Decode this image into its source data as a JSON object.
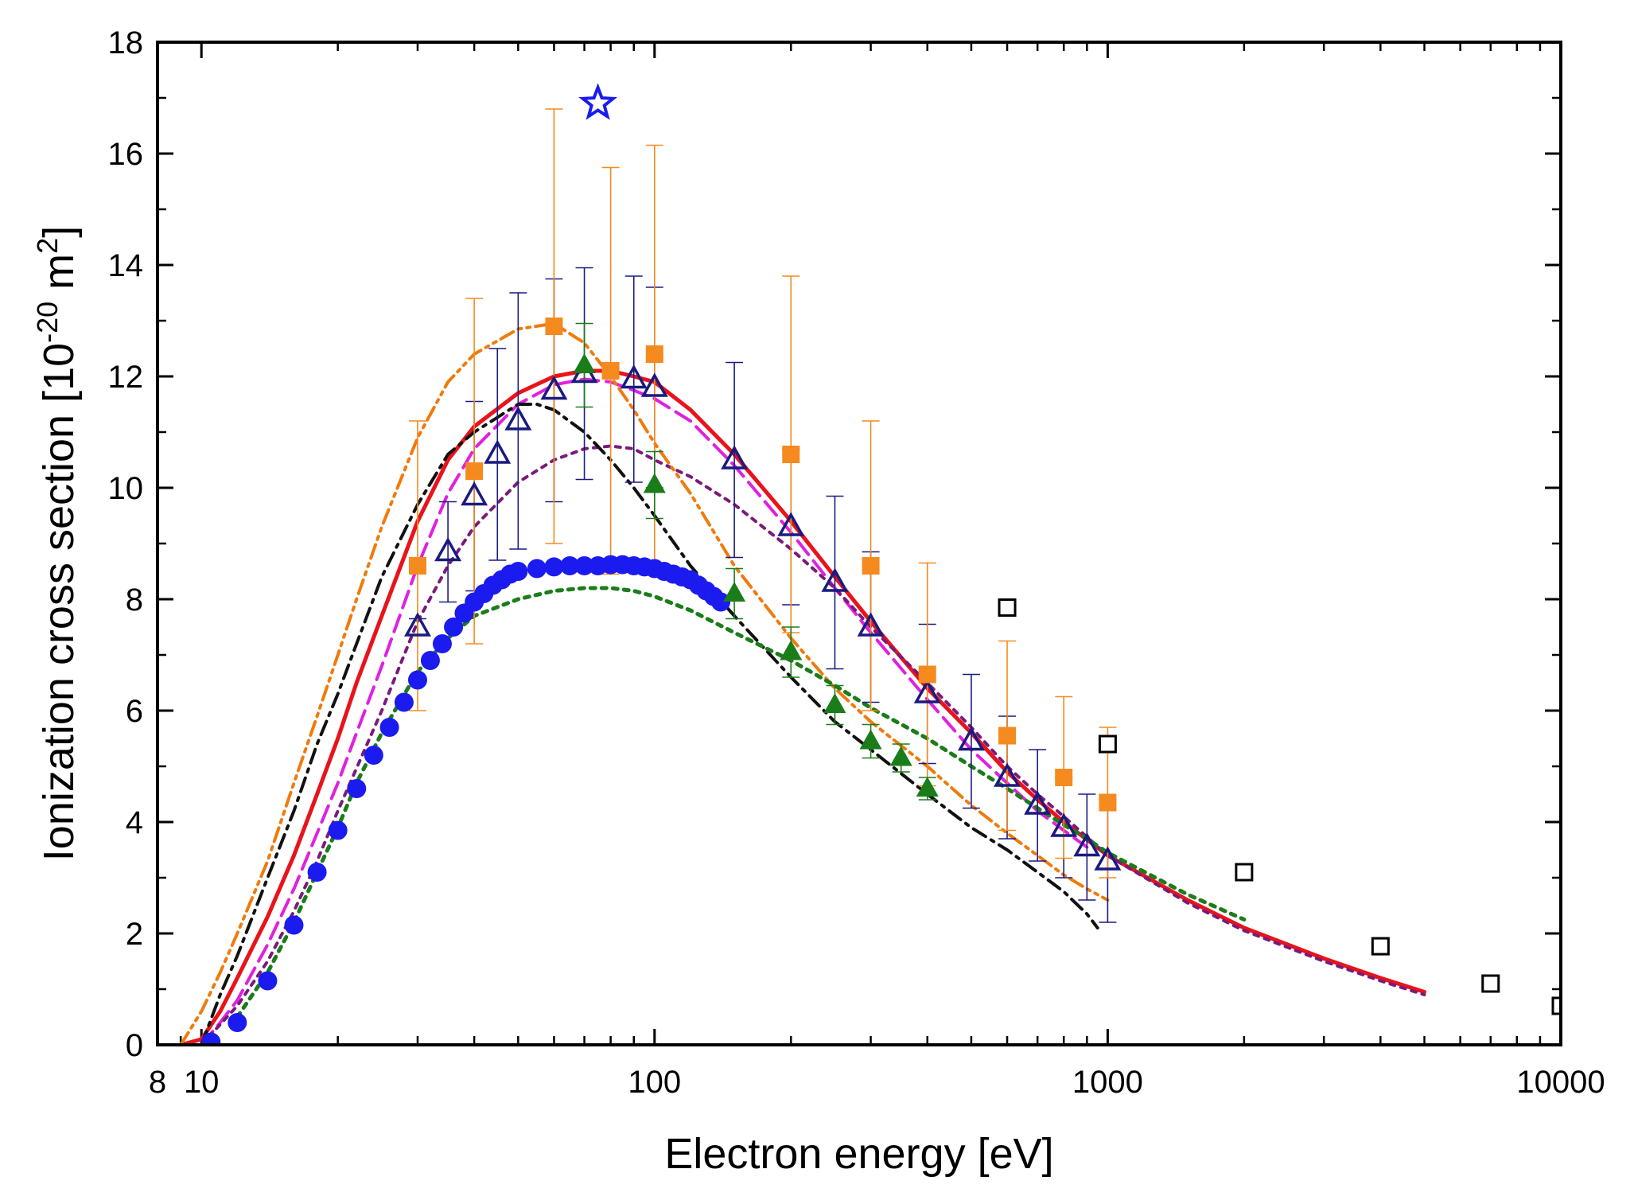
{
  "chart_data": {
    "type": "scatter",
    "title": "",
    "xlabel": "Electron energy [eV]",
    "ylabel": {
      "prefix": "Ionization cross section [10",
      "exp1": "-20",
      "mid": " m",
      "exp2": "2",
      "suffix": "]"
    },
    "x_scale": "log",
    "xlim": [
      8,
      10000
    ],
    "ylim": [
      0,
      18
    ],
    "grid": false,
    "legend": "none",
    "x_ticks": [
      {
        "value": 8,
        "label": "8"
      },
      {
        "value": 10,
        "label": "10"
      },
      {
        "value": 100,
        "label": "100"
      },
      {
        "value": 1000,
        "label": "1000"
      },
      {
        "value": 10000,
        "label": "10000"
      }
    ],
    "y_ticks": [
      {
        "value": 0,
        "label": "0"
      },
      {
        "value": 2,
        "label": "2"
      },
      {
        "value": 4,
        "label": "4"
      },
      {
        "value": 6,
        "label": "6"
      },
      {
        "value": 8,
        "label": "8"
      },
      {
        "value": 10,
        "label": "10"
      },
      {
        "value": 12,
        "label": "12"
      },
      {
        "value": 14,
        "label": "14"
      },
      {
        "value": 16,
        "label": "16"
      },
      {
        "value": 18,
        "label": "18"
      }
    ],
    "lines": [
      {
        "color": "#e8131b",
        "style": "solid",
        "width": 5,
        "points": [
          [
            9,
            0
          ],
          [
            10,
            0.1
          ],
          [
            11,
            0.6
          ],
          [
            12,
            1.2
          ],
          [
            14,
            2.3
          ],
          [
            16,
            3.4
          ],
          [
            18,
            4.5
          ],
          [
            20,
            5.5
          ],
          [
            22,
            6.5
          ],
          [
            25,
            7.7
          ],
          [
            30,
            9.4
          ],
          [
            35,
            10.5
          ],
          [
            40,
            11.1
          ],
          [
            50,
            11.7
          ],
          [
            60,
            12.0
          ],
          [
            70,
            12.1
          ],
          [
            80,
            12.1
          ],
          [
            90,
            12.0
          ],
          [
            100,
            11.9
          ],
          [
            120,
            11.4
          ],
          [
            150,
            10.6
          ],
          [
            200,
            9.4
          ],
          [
            250,
            8.4
          ],
          [
            300,
            7.6
          ],
          [
            400,
            6.4
          ],
          [
            500,
            5.6
          ],
          [
            600,
            4.9
          ],
          [
            700,
            4.4
          ],
          [
            800,
            4.0
          ],
          [
            1000,
            3.4
          ],
          [
            1500,
            2.6
          ],
          [
            2000,
            2.1
          ],
          [
            3000,
            1.55
          ],
          [
            4000,
            1.2
          ],
          [
            5000,
            0.95
          ]
        ]
      },
      {
        "color": "#e020e0",
        "style": "dashed",
        "width": 4,
        "points": [
          [
            10,
            0.0
          ],
          [
            11,
            0.4
          ],
          [
            12,
            0.8
          ],
          [
            14,
            1.8
          ],
          [
            16,
            2.8
          ],
          [
            18,
            3.8
          ],
          [
            20,
            4.7
          ],
          [
            22,
            5.6
          ],
          [
            25,
            6.8
          ],
          [
            30,
            8.6
          ],
          [
            35,
            9.9
          ],
          [
            40,
            10.7
          ],
          [
            50,
            11.5
          ],
          [
            60,
            11.85
          ],
          [
            70,
            11.95
          ],
          [
            80,
            11.9
          ],
          [
            90,
            11.75
          ],
          [
            100,
            11.6
          ],
          [
            120,
            11.2
          ],
          [
            150,
            10.4
          ],
          [
            200,
            9.2
          ],
          [
            250,
            8.2
          ],
          [
            300,
            7.4
          ],
          [
            400,
            6.2
          ],
          [
            500,
            5.3
          ],
          [
            600,
            4.7
          ],
          [
            700,
            4.2
          ],
          [
            800,
            3.85
          ],
          [
            900,
            3.55
          ]
        ]
      },
      {
        "color": "#7a1a7a",
        "style": "dotted",
        "width": 4,
        "points": [
          [
            10,
            0.0
          ],
          [
            12,
            0.7
          ],
          [
            14,
            1.5
          ],
          [
            16,
            2.4
          ],
          [
            18,
            3.3
          ],
          [
            20,
            4.2
          ],
          [
            25,
            6.0
          ],
          [
            30,
            7.6
          ],
          [
            35,
            8.6
          ],
          [
            40,
            9.3
          ],
          [
            50,
            10.1
          ],
          [
            60,
            10.5
          ],
          [
            70,
            10.7
          ],
          [
            80,
            10.75
          ],
          [
            90,
            10.7
          ],
          [
            100,
            10.5
          ],
          [
            120,
            10.2
          ],
          [
            150,
            9.7
          ],
          [
            200,
            8.9
          ],
          [
            250,
            8.2
          ],
          [
            300,
            7.5
          ],
          [
            400,
            6.5
          ],
          [
            500,
            5.7
          ],
          [
            600,
            5.0
          ],
          [
            700,
            4.5
          ],
          [
            800,
            4.1
          ],
          [
            1000,
            3.4
          ],
          [
            1500,
            2.55
          ],
          [
            2000,
            2.05
          ],
          [
            3000,
            1.5
          ],
          [
            4000,
            1.15
          ],
          [
            5000,
            0.9
          ]
        ]
      },
      {
        "color": "#f07b0c",
        "style": "dashdotdot",
        "width": 4,
        "points": [
          [
            9,
            0
          ],
          [
            10,
            0.6
          ],
          [
            11,
            1.3
          ],
          [
            12,
            2.0
          ],
          [
            14,
            3.3
          ],
          [
            16,
            4.7
          ],
          [
            18,
            5.9
          ],
          [
            20,
            7.0
          ],
          [
            22,
            8.0
          ],
          [
            25,
            9.3
          ],
          [
            30,
            10.9
          ],
          [
            35,
            11.9
          ],
          [
            40,
            12.4
          ],
          [
            50,
            12.85
          ],
          [
            60,
            12.95
          ],
          [
            70,
            12.6
          ],
          [
            80,
            12.0
          ],
          [
            90,
            11.4
          ],
          [
            100,
            10.8
          ],
          [
            120,
            9.9
          ],
          [
            150,
            8.6
          ],
          [
            200,
            7.3
          ],
          [
            250,
            6.4
          ],
          [
            300,
            5.8
          ],
          [
            400,
            5.0
          ],
          [
            500,
            4.3
          ],
          [
            600,
            3.8
          ],
          [
            700,
            3.4
          ],
          [
            800,
            3.05
          ],
          [
            900,
            2.8
          ],
          [
            1000,
            2.6
          ]
        ]
      },
      {
        "color": "#111111",
        "style": "dashdot",
        "width": 4,
        "points": [
          [
            10,
            0.0
          ],
          [
            11,
            0.9
          ],
          [
            12,
            1.6
          ],
          [
            14,
            3.0
          ],
          [
            16,
            4.2
          ],
          [
            18,
            5.4
          ],
          [
            20,
            6.3
          ],
          [
            22,
            7.2
          ],
          [
            25,
            8.4
          ],
          [
            30,
            9.7
          ],
          [
            35,
            10.6
          ],
          [
            40,
            11.0
          ],
          [
            50,
            11.5
          ],
          [
            55,
            11.5
          ],
          [
            60,
            11.4
          ],
          [
            70,
            11.0
          ],
          [
            80,
            10.5
          ],
          [
            90,
            10.0
          ],
          [
            100,
            9.5
          ],
          [
            120,
            8.6
          ],
          [
            150,
            7.7
          ],
          [
            200,
            6.6
          ],
          [
            250,
            5.8
          ],
          [
            300,
            5.3
          ],
          [
            400,
            4.5
          ],
          [
            500,
            3.9
          ],
          [
            600,
            3.5
          ],
          [
            700,
            3.1
          ],
          [
            800,
            2.75
          ],
          [
            900,
            2.35
          ],
          [
            950,
            2.1
          ]
        ]
      },
      {
        "color": "#1a7d1a",
        "style": "dotted",
        "width": 5,
        "points": [
          [
            12,
            0.5
          ],
          [
            14,
            1.3
          ],
          [
            16,
            2.2
          ],
          [
            18,
            3.1
          ],
          [
            20,
            3.9
          ],
          [
            22,
            4.7
          ],
          [
            25,
            5.6
          ],
          [
            30,
            6.7
          ],
          [
            35,
            7.3
          ],
          [
            40,
            7.7
          ],
          [
            50,
            8.0
          ],
          [
            60,
            8.15
          ],
          [
            70,
            8.2
          ],
          [
            80,
            8.2
          ],
          [
            90,
            8.15
          ],
          [
            100,
            8.05
          ],
          [
            120,
            7.8
          ],
          [
            150,
            7.4
          ],
          [
            200,
            6.9
          ],
          [
            250,
            6.45
          ],
          [
            300,
            6.05
          ],
          [
            400,
            5.5
          ],
          [
            500,
            5.0
          ],
          [
            600,
            4.6
          ],
          [
            700,
            4.25
          ],
          [
            800,
            3.95
          ],
          [
            900,
            3.7
          ],
          [
            1000,
            3.45
          ],
          [
            1500,
            2.7
          ],
          [
            2000,
            2.25
          ]
        ]
      }
    ],
    "series": [
      {
        "marker": "filled-circle",
        "color": "#1b1bf0",
        "points": [
          [
            10.5,
            0.05
          ],
          [
            12,
            0.4
          ],
          [
            14,
            1.15
          ],
          [
            16,
            2.15
          ],
          [
            18,
            3.1
          ],
          [
            20,
            3.85
          ],
          [
            22,
            4.6
          ],
          [
            24,
            5.2
          ],
          [
            26,
            5.7
          ],
          [
            28,
            6.15
          ],
          [
            30,
            6.55
          ],
          [
            32,
            6.9
          ],
          [
            34,
            7.2
          ],
          [
            36,
            7.5
          ],
          [
            38,
            7.75
          ],
          [
            40,
            7.95
          ],
          [
            42,
            8.1
          ],
          [
            44,
            8.25
          ],
          [
            46,
            8.35
          ],
          [
            48,
            8.45
          ],
          [
            50,
            8.5
          ],
          [
            55,
            8.55
          ],
          [
            60,
            8.58
          ],
          [
            65,
            8.6
          ],
          [
            70,
            8.6
          ],
          [
            75,
            8.6
          ],
          [
            80,
            8.62
          ],
          [
            85,
            8.62
          ],
          [
            90,
            8.6
          ],
          [
            95,
            8.58
          ],
          [
            100,
            8.55
          ],
          [
            105,
            8.5
          ],
          [
            110,
            8.45
          ],
          [
            115,
            8.4
          ],
          [
            120,
            8.35
          ],
          [
            125,
            8.25
          ],
          [
            130,
            8.15
          ],
          [
            135,
            8.05
          ],
          [
            140,
            7.95
          ]
        ]
      },
      {
        "marker": "open-triangle",
        "color": "#1a1a80",
        "points": [
          [
            30,
            7.5
          ],
          [
            35,
            8.85
          ],
          [
            40,
            9.85
          ],
          [
            45,
            10.6
          ],
          [
            50,
            11.2
          ],
          [
            60,
            11.75
          ],
          [
            70,
            12.05
          ],
          [
            90,
            11.95
          ],
          [
            100,
            11.8
          ],
          [
            150,
            10.5
          ],
          [
            200,
            9.3
          ],
          [
            250,
            8.3
          ],
          [
            300,
            7.5
          ],
          [
            400,
            6.3
          ],
          [
            500,
            5.45
          ],
          [
            600,
            4.8
          ],
          [
            700,
            4.3
          ],
          [
            800,
            3.9
          ],
          [
            900,
            3.55
          ],
          [
            1000,
            3.3
          ]
        ],
        "errors": [
          0.15,
          0.9,
          1.7,
          1.9,
          2.3,
          2.0,
          1.9,
          1.85,
          1.8,
          1.75,
          1.4,
          1.55,
          1.35,
          1.25,
          1.2,
          1.1,
          1.0,
          0.9,
          0.95,
          1.1
        ]
      },
      {
        "marker": "filled-square",
        "color": "#f58a1f",
        "points": [
          [
            30,
            8.6
          ],
          [
            40,
            10.3
          ],
          [
            60,
            12.9
          ],
          [
            80,
            12.1
          ],
          [
            100,
            12.4
          ],
          [
            200,
            10.6
          ],
          [
            300,
            8.6
          ],
          [
            400,
            6.65
          ],
          [
            600,
            5.55
          ],
          [
            800,
            4.8
          ],
          [
            1000,
            4.35
          ]
        ],
        "errors": [
          2.6,
          3.1,
          3.9,
          3.65,
          3.75,
          3.2,
          2.6,
          2.0,
          1.7,
          1.45,
          1.35
        ]
      },
      {
        "marker": "filled-triangle",
        "color": "#1a7d1a",
        "points": [
          [
            70,
            12.2
          ],
          [
            100,
            10.05
          ],
          [
            150,
            8.1
          ],
          [
            200,
            7.05
          ],
          [
            250,
            6.1
          ],
          [
            300,
            5.45
          ],
          [
            350,
            5.15
          ],
          [
            400,
            4.6
          ]
        ],
        "errors": [
          0.75,
          0.6,
          0.45,
          0.45,
          0.35,
          0.3,
          0.25,
          0.2
        ]
      },
      {
        "marker": "open-square",
        "color": "#000000",
        "points": [
          [
            600,
            7.85
          ],
          [
            1000,
            5.4
          ],
          [
            2000,
            3.1
          ],
          [
            4000,
            1.77
          ],
          [
            7000,
            1.1
          ],
          [
            10000,
            0.7
          ]
        ]
      },
      {
        "marker": "open-star",
        "color": "#1b1bf0",
        "points": [
          [
            75,
            16.9
          ]
        ]
      }
    ]
  }
}
